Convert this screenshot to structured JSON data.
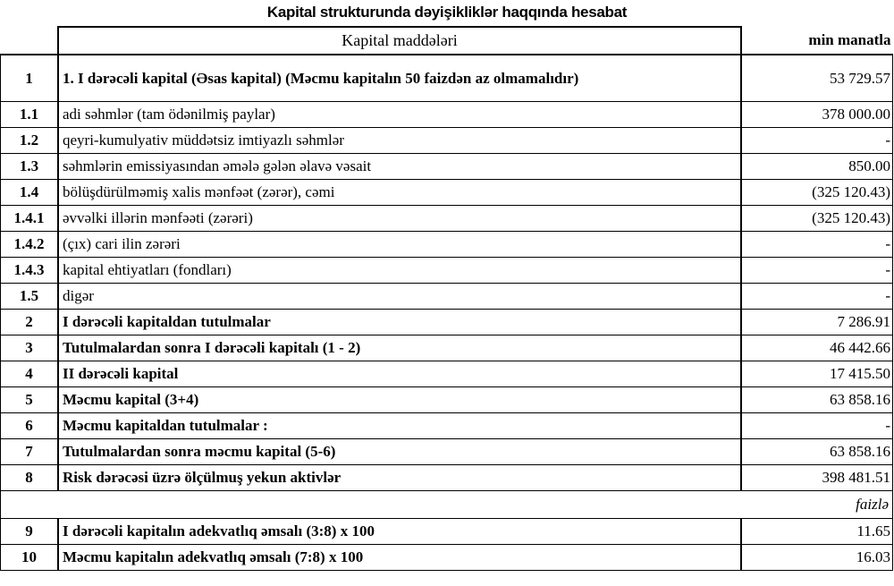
{
  "title": "Kapital strukturunda dəyişikliklər haqqında hesabat",
  "header": {
    "items": "Kapital maddələri",
    "unit": "min manatla"
  },
  "rows": [
    {
      "num": "1",
      "label": "1. I dərəcəli kapital (Əsas kapital) (Məcmu kapitalın 50 faizdən  az olmamalıdır)",
      "value": "53 729.57",
      "bold": true
    },
    {
      "num": "1.1",
      "label": "adi səhmlər (tam ödənilmiş paylar)",
      "value": "378 000.00",
      "bold": false
    },
    {
      "num": "1.2",
      "label": "qeyri-kumulyativ müddətsiz imtiyazlı səhmlər",
      "value": "-",
      "bold": false
    },
    {
      "num": "1.3",
      "label": "səhmlərin emissiyasından əmələ gələn  əlavə vəsait",
      "value": "850.00",
      "bold": false
    },
    {
      "num": "1.4",
      "label": "bölüşdürülməmiş xalis mənfəət (zərər), cəmi",
      "value": "(325 120.43)",
      "bold": false
    },
    {
      "num": "1.4.1",
      "label": "əvvəlki illərin mənfəəti (zərəri)",
      "value": "(325 120.43)",
      "bold": false
    },
    {
      "num": "1.4.2",
      "label": "(çıx) cari ilin zərəri",
      "value": "-",
      "bold": false
    },
    {
      "num": "1.4.3",
      "label": "kapital ehtiyatları (fondları)",
      "value": "-",
      "bold": false
    },
    {
      "num": "1.5",
      "label": "digər",
      "value": "-",
      "bold": false
    },
    {
      "num": "2",
      "label": "I dərəcəli kapitaldan  tutulmalar",
      "value": "7 286.91",
      "bold": true
    },
    {
      "num": "3",
      "label": "Tutulmalardan  sonra I dərəcəli kapitalı (1 - 2)",
      "value": "46 442.66",
      "bold": true
    },
    {
      "num": "4",
      "label": "II dərəcəli  kapital",
      "value": "17 415.50",
      "bold": true
    },
    {
      "num": "5",
      "label": "Məcmu kapital (3+4)",
      "value": "63 858.16",
      "bold": true
    },
    {
      "num": "6",
      "label": "Məcmu kapitaldan tutulmalar :",
      "value": "-",
      "bold": true
    },
    {
      "num": "7",
      "label": "Tutulmalardan sonra məcmu kapital (5-6)",
      "value": "63 858.16",
      "bold": true
    },
    {
      "num": "8",
      "label": "Risk dərəcəsi üzrə ölçülmuş  yekun aktivlər",
      "value": "398 481.51",
      "bold": true
    }
  ],
  "percent_unit": "faizlə",
  "ratio_rows": [
    {
      "num": "9",
      "label": "I dərəcəli  kapitalın  adekvatlıq  əmsalı (3:8) x 100",
      "value": "11.65"
    },
    {
      "num": "10",
      "label": "Məcmu kapitalın  adekvatlıq  əmsalı (7:8) x 100",
      "value": "16.03"
    }
  ]
}
